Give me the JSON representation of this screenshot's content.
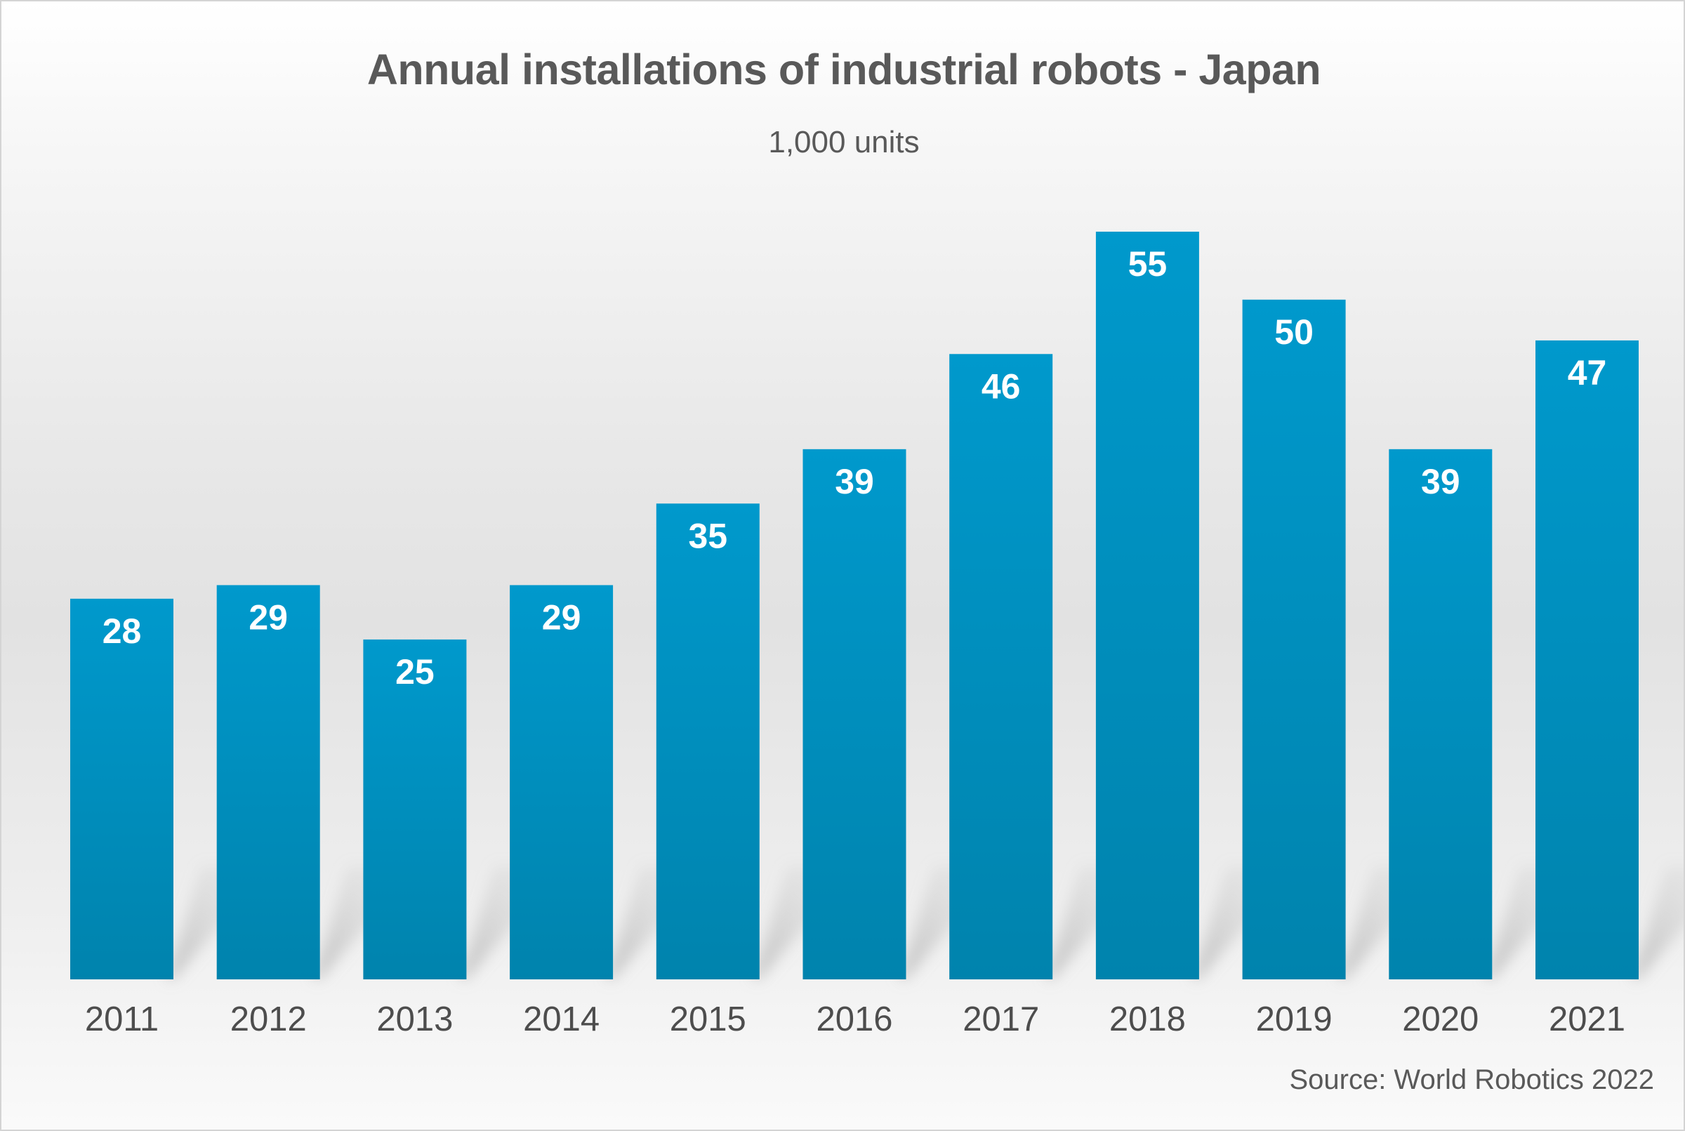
{
  "chart_data": {
    "type": "bar",
    "title": "Annual installations of industrial robots - Japan",
    "subtitle": "1,000 units",
    "xlabel": "",
    "ylabel": "",
    "categories": [
      "2011",
      "2012",
      "2013",
      "2014",
      "2015",
      "2016",
      "2017",
      "2018",
      "2019",
      "2020",
      "2021"
    ],
    "values": [
      28,
      29,
      25,
      29,
      35,
      39,
      46,
      55,
      50,
      39,
      47
    ],
    "data_labels": [
      "28",
      "29",
      "25",
      "29",
      "35",
      "39",
      "46",
      "55",
      "50",
      "39",
      "47"
    ],
    "ylim": [
      0,
      55
    ],
    "grid": false,
    "legend": "none",
    "source": "Source: World Robotics 2022",
    "colors": {
      "bar_top": "#0099cc",
      "bar_bottom": "#0083ad",
      "text": "#595959"
    }
  }
}
